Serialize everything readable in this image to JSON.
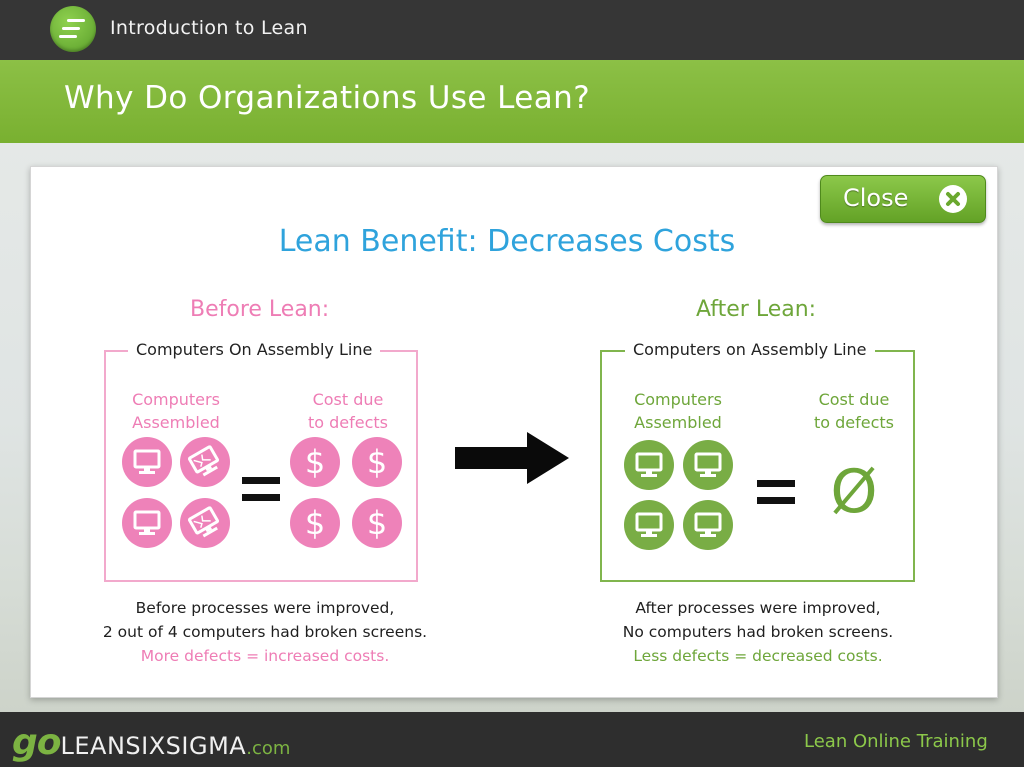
{
  "header": {
    "course_title": "Introduction to Lean",
    "page_title": "Why Do Organizations Use Lean?"
  },
  "panel": {
    "close_label": "Close",
    "benefit_title": "Lean Benefit: Decreases Costs",
    "before": {
      "heading": "Before Lean:",
      "box_title": "Computers On Assembly Line",
      "col_assembled_1": "Computers",
      "col_assembled_2": "Assembled",
      "col_cost_1": "Cost due",
      "col_cost_2": "to defects",
      "dollar_symbol": "$",
      "caption_1": "Before processes were improved,",
      "caption_2": "2 out of 4 computers had broken screens.",
      "caption_3": "More defects = increased costs."
    },
    "after": {
      "heading": "After Lean:",
      "box_title": "Computers on Assembly Line",
      "col_assembled_1": "Computers",
      "col_assembled_2": "Assembled",
      "col_cost_1": "Cost due",
      "col_cost_2": "to defects",
      "null_symbol": "Ø",
      "caption_1": "After processes were improved,",
      "caption_2": "No computers had broken screens.",
      "caption_3": "Less defects = decreased costs."
    }
  },
  "footer": {
    "brand_go": "go",
    "brand_main": "LEANSIXSIGMA",
    "brand_com": ".com",
    "right_text": "Lean Online Training"
  },
  "colors": {
    "pink": "#ee82b9",
    "green": "#79ad45",
    "title_blue": "#2fa3dc"
  },
  "icons": [
    "course-logo-icon",
    "close-icon",
    "computer-icon",
    "broken-computer-icon",
    "dollar-icon",
    "arrow-right-icon"
  ]
}
